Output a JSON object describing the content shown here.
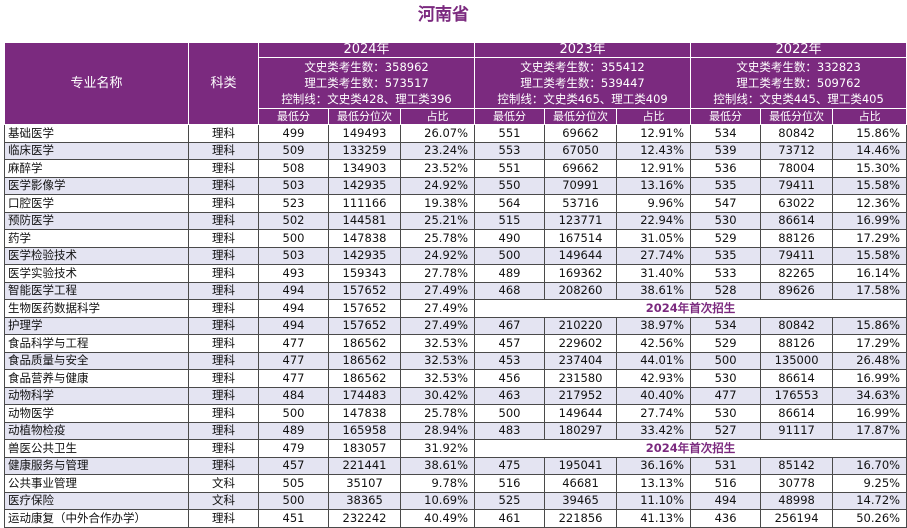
{
  "title": "河南省",
  "headers": {
    "major": "专业名称",
    "type": "科类",
    "sub": [
      "最低分",
      "最低分位次",
      "占比"
    ]
  },
  "years": [
    {
      "year": "2024年",
      "info": [
        "文史类考生数：358962",
        "理工类考生数：573517",
        "控制线：文史类428、理工类396"
      ]
    },
    {
      "year": "2023年",
      "info": [
        "文史类考生数：355412",
        "理工类考生数：539447",
        "控制线：文史类465、理工类409"
      ]
    },
    {
      "year": "2022年",
      "info": [
        "文史类考生数：332823",
        "理工类考生数：509762",
        "控制线：文史类445、理工类405"
      ]
    }
  ],
  "rows": [
    {
      "name": "基础医学",
      "type": "理科",
      "y2024": [
        "499",
        "149493",
        "26.07%"
      ],
      "y2023": [
        "551",
        "69662",
        "12.91%"
      ],
      "y2022": [
        "534",
        "80842",
        "15.86%"
      ]
    },
    {
      "name": "临床医学",
      "type": "理科",
      "y2024": [
        "509",
        "133259",
        "23.24%"
      ],
      "y2023": [
        "553",
        "67050",
        "12.43%"
      ],
      "y2022": [
        "539",
        "73712",
        "14.46%"
      ]
    },
    {
      "name": "麻醉学",
      "type": "理科",
      "y2024": [
        "508",
        "134903",
        "23.52%"
      ],
      "y2023": [
        "551",
        "69662",
        "12.91%"
      ],
      "y2022": [
        "536",
        "78004",
        "15.30%"
      ]
    },
    {
      "name": "医学影像学",
      "type": "理科",
      "y2024": [
        "503",
        "142935",
        "24.92%"
      ],
      "y2023": [
        "550",
        "70991",
        "13.16%"
      ],
      "y2022": [
        "535",
        "79411",
        "15.58%"
      ]
    },
    {
      "name": "口腔医学",
      "type": "理科",
      "y2024": [
        "523",
        "111166",
        "19.38%"
      ],
      "y2023": [
        "564",
        "53716",
        "9.96%"
      ],
      "y2022": [
        "547",
        "63022",
        "12.36%"
      ]
    },
    {
      "name": "预防医学",
      "type": "理科",
      "y2024": [
        "502",
        "144581",
        "25.21%"
      ],
      "y2023": [
        "515",
        "123771",
        "22.94%"
      ],
      "y2022": [
        "530",
        "86614",
        "16.99%"
      ]
    },
    {
      "name": "药学",
      "type": "理科",
      "y2024": [
        "500",
        "147838",
        "25.78%"
      ],
      "y2023": [
        "490",
        "167514",
        "31.05%"
      ],
      "y2022": [
        "529",
        "88126",
        "17.29%"
      ]
    },
    {
      "name": "医学检验技术",
      "type": "理科",
      "y2024": [
        "503",
        "142935",
        "24.92%"
      ],
      "y2023": [
        "500",
        "149644",
        "27.74%"
      ],
      "y2022": [
        "535",
        "79411",
        "15.58%"
      ]
    },
    {
      "name": "医学实验技术",
      "type": "理科",
      "y2024": [
        "493",
        "159343",
        "27.78%"
      ],
      "y2023": [
        "489",
        "169362",
        "31.40%"
      ],
      "y2022": [
        "533",
        "82265",
        "16.14%"
      ]
    },
    {
      "name": "智能医学工程",
      "type": "理科",
      "y2024": [
        "494",
        "157652",
        "27.49%"
      ],
      "y2023": [
        "468",
        "208260",
        "38.61%"
      ],
      "y2022": [
        "528",
        "89626",
        "17.58%"
      ]
    },
    {
      "name": "生物医药数据科学",
      "type": "理科",
      "y2024": [
        "494",
        "157652",
        "27.49%"
      ],
      "note": "2024年首次招生"
    },
    {
      "name": "护理学",
      "type": "理科",
      "y2024": [
        "494",
        "157652",
        "27.49%"
      ],
      "y2023": [
        "467",
        "210220",
        "38.97%"
      ],
      "y2022": [
        "534",
        "80842",
        "15.86%"
      ]
    },
    {
      "name": "食品科学与工程",
      "type": "理科",
      "y2024": [
        "477",
        "186562",
        "32.53%"
      ],
      "y2023": [
        "457",
        "229602",
        "42.56%"
      ],
      "y2022": [
        "529",
        "88126",
        "17.29%"
      ]
    },
    {
      "name": "食品质量与安全",
      "type": "理科",
      "y2024": [
        "477",
        "186562",
        "32.53%"
      ],
      "y2023": [
        "453",
        "237404",
        "44.01%"
      ],
      "y2022": [
        "500",
        "135000",
        "26.48%"
      ]
    },
    {
      "name": "食品营养与健康",
      "type": "理科",
      "y2024": [
        "477",
        "186562",
        "32.53%"
      ],
      "y2023": [
        "456",
        "231580",
        "42.93%"
      ],
      "y2022": [
        "530",
        "86614",
        "16.99%"
      ]
    },
    {
      "name": "动物科学",
      "type": "理科",
      "y2024": [
        "484",
        "174483",
        "30.42%"
      ],
      "y2023": [
        "463",
        "217952",
        "40.40%"
      ],
      "y2022": [
        "477",
        "176553",
        "34.63%"
      ]
    },
    {
      "name": "动物医学",
      "type": "理科",
      "y2024": [
        "500",
        "147838",
        "25.78%"
      ],
      "y2023": [
        "500",
        "149644",
        "27.74%"
      ],
      "y2022": [
        "530",
        "86614",
        "16.99%"
      ]
    },
    {
      "name": "动植物检疫",
      "type": "理科",
      "y2024": [
        "489",
        "165958",
        "28.94%"
      ],
      "y2023": [
        "483",
        "180297",
        "33.42%"
      ],
      "y2022": [
        "527",
        "91117",
        "17.87%"
      ]
    },
    {
      "name": "兽医公共卫生",
      "type": "理科",
      "y2024": [
        "479",
        "183057",
        "31.92%"
      ],
      "note": "2024年首次招生"
    },
    {
      "name": "健康服务与管理",
      "type": "理科",
      "y2024": [
        "457",
        "221441",
        "38.61%"
      ],
      "y2023": [
        "475",
        "195041",
        "36.16%"
      ],
      "y2022": [
        "531",
        "85142",
        "16.70%"
      ]
    },
    {
      "name": "公共事业管理",
      "type": "文科",
      "y2024": [
        "505",
        "35107",
        "9.78%"
      ],
      "y2023": [
        "516",
        "46681",
        "13.13%"
      ],
      "y2022": [
        "516",
        "30778",
        "9.25%"
      ]
    },
    {
      "name": "医疗保险",
      "type": "文科",
      "y2024": [
        "500",
        "38365",
        "10.69%"
      ],
      "y2023": [
        "525",
        "39465",
        "11.10%"
      ],
      "y2022": [
        "494",
        "48998",
        "14.72%"
      ]
    },
    {
      "name": "运动康复（中外合作办学）",
      "type": "理科",
      "y2024": [
        "451",
        "232242",
        "40.49%"
      ],
      "y2023": [
        "461",
        "221856",
        "41.13%"
      ],
      "y2022": [
        "436",
        "256194",
        "50.26%"
      ]
    }
  ]
}
